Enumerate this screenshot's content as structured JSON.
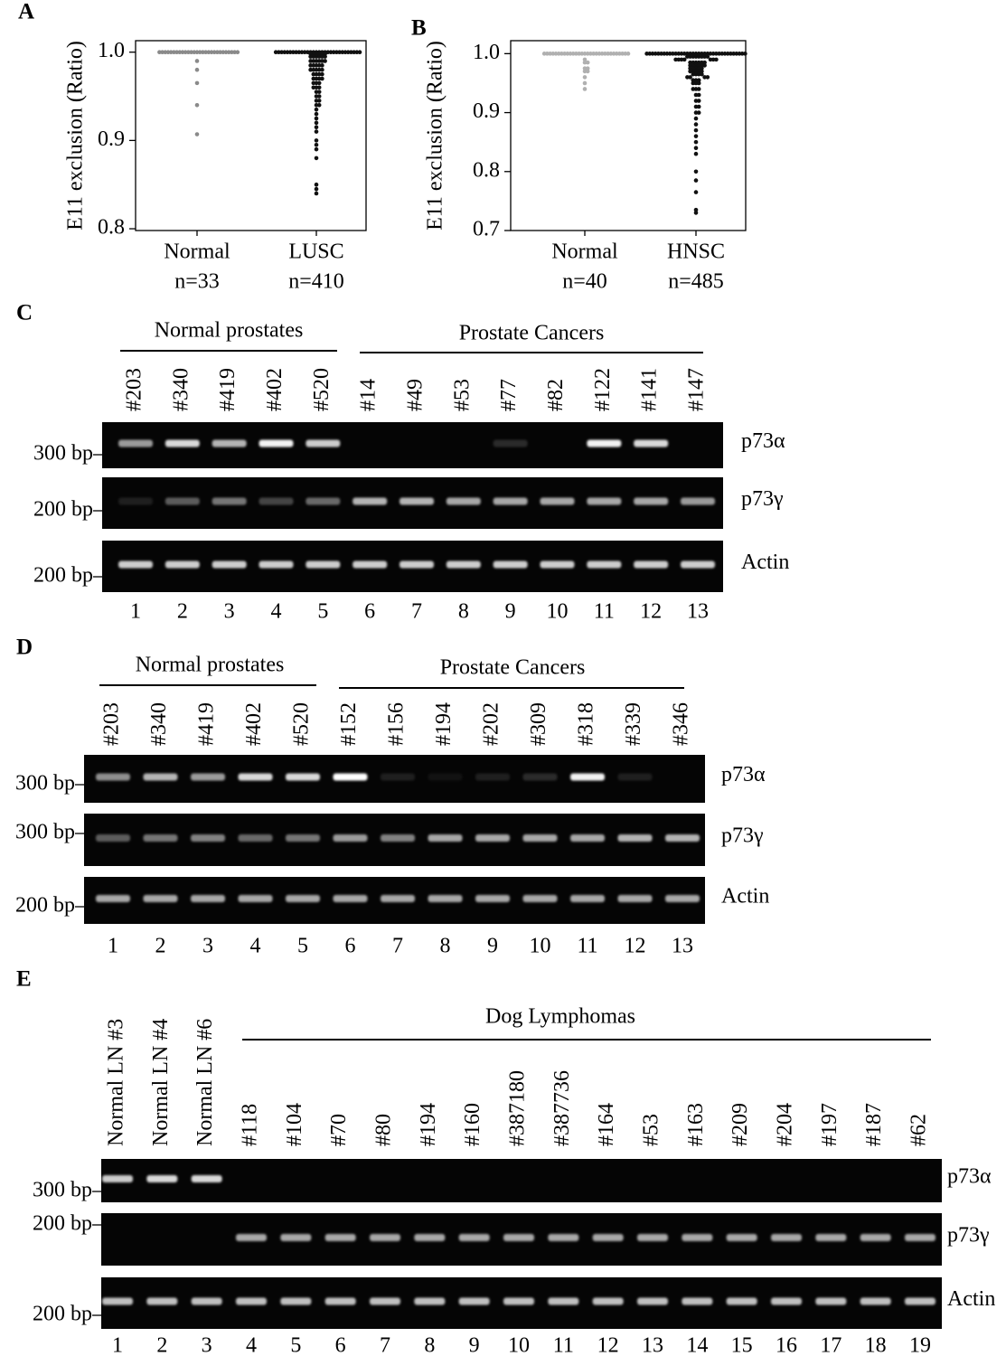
{
  "chart_data": [
    {
      "type": "strip",
      "panel": "A",
      "ylabel": "E11 exclusion (Ratio)",
      "ylim": [
        0.798,
        1.013
      ],
      "yticks": [
        0.8,
        0.9,
        {
          "value": 1,
          "label": "1.0"
        }
      ],
      "series": [
        {
          "name": "Normal",
          "n_label": "n=33",
          "color": "#8a8a8a",
          "values": [
            1,
            1,
            1,
            1,
            1,
            1,
            1,
            1,
            1,
            1,
            1,
            1,
            1,
            1,
            1,
            1,
            1,
            1,
            1,
            1,
            1,
            1,
            1,
            1,
            1,
            1,
            1,
            1,
            0.99,
            0.98,
            0.965,
            0.94,
            0.907
          ]
        },
        {
          "name": "LUSC",
          "n_label": "n=410",
          "color": "#111111",
          "values": [
            1,
            1,
            1,
            1,
            1,
            1,
            1,
            1,
            1,
            1,
            1,
            1,
            1,
            1,
            1,
            1,
            1,
            1,
            1,
            1,
            1,
            1,
            1,
            1,
            1,
            1,
            1,
            1,
            1,
            1,
            0.998,
            0.998,
            0.998,
            0.998,
            0.998,
            0.998,
            0.995,
            0.995,
            0.995,
            0.995,
            0.995,
            0.995,
            0.99,
            0.99,
            0.99,
            0.99,
            0.99,
            0.99,
            0.985,
            0.985,
            0.985,
            0.985,
            0.985,
            0.98,
            0.98,
            0.98,
            0.98,
            0.98,
            0.975,
            0.975,
            0.975,
            0.975,
            0.97,
            0.97,
            0.97,
            0.97,
            0.965,
            0.965,
            0.965,
            0.96,
            0.96,
            0.96,
            0.955,
            0.955,
            0.95,
            0.95,
            0.945,
            0.945,
            0.94,
            0.94,
            0.935,
            0.93,
            0.925,
            0.92,
            0.915,
            0.91,
            0.9,
            0.895,
            0.89,
            0.88,
            0.85,
            0.845,
            0.84
          ]
        }
      ]
    },
    {
      "type": "strip",
      "panel": "B",
      "ylabel": "E11 exclusion (Ratio)",
      "ylim": [
        0.7,
        1.022
      ],
      "yticks": [
        0.7,
        0.8,
        0.9,
        {
          "value": 1,
          "label": "1.0"
        }
      ],
      "series": [
        {
          "name": "Normal",
          "n_label": "n=40",
          "color": "#b0b0b0",
          "values": [
            1,
            1,
            1,
            1,
            1,
            1,
            1,
            1,
            1,
            1,
            1,
            1,
            1,
            1,
            1,
            1,
            1,
            1,
            1,
            1,
            1,
            1,
            1,
            1,
            1,
            1,
            1,
            1,
            1,
            1,
            0.99,
            0.985,
            0.985,
            0.975,
            0.975,
            0.97,
            0.97,
            0.96,
            0.95,
            0.94
          ]
        },
        {
          "name": "HNSC",
          "n_label": "n=485",
          "color": "#111111",
          "values": [
            1,
            1,
            1,
            1,
            1,
            1,
            1,
            1,
            1,
            1,
            1,
            1,
            1,
            1,
            1,
            1,
            1,
            1,
            1,
            1,
            1,
            1,
            1,
            1,
            1,
            1,
            1,
            1,
            1,
            1,
            1,
            1,
            1,
            1,
            1,
            0.995,
            0.995,
            0.995,
            0.995,
            0.995,
            0.995,
            0.995,
            0.995,
            0.99,
            0.99,
            0.99,
            0.99,
            0.99,
            0.99,
            0.99,
            0.985,
            0.985,
            0.985,
            0.985,
            0.985,
            0.985,
            0.98,
            0.98,
            0.98,
            0.98,
            0.98,
            0.98,
            0.975,
            0.975,
            0.975,
            0.975,
            0.975,
            0.97,
            0.97,
            0.97,
            0.97,
            0.97,
            0.965,
            0.965,
            0.965,
            0.965,
            0.96,
            0.96,
            0.96,
            0.96,
            0.955,
            0.955,
            0.955,
            0.95,
            0.95,
            0.95,
            0.94,
            0.94,
            0.94,
            0.93,
            0.93,
            0.92,
            0.92,
            0.91,
            0.91,
            0.9,
            0.9,
            0.89,
            0.88,
            0.87,
            0.86,
            0.85,
            0.84,
            0.83,
            0.8,
            0.785,
            0.765,
            0.735,
            0.73
          ]
        }
      ]
    }
  ],
  "gels": [
    {
      "panel": "C",
      "groups": [
        "Normal prostates",
        "Prostate Cancers"
      ],
      "lanes": [
        "#203",
        "#340",
        "#419",
        "#402",
        "#520",
        "#14",
        "#49",
        "#53",
        "#77",
        "#82",
        "#122",
        "#141",
        "#147"
      ],
      "rows": [
        {
          "marker": "300 bp",
          "label": "p73α"
        },
        {
          "marker": "200 bp",
          "label": "p73γ"
        },
        {
          "marker": "200 bp",
          "label": "Actin"
        }
      ],
      "lane_numbers": [
        1,
        2,
        3,
        4,
        5,
        6,
        7,
        8,
        9,
        10,
        11,
        12,
        13
      ]
    },
    {
      "panel": "D",
      "groups": [
        "Normal prostates",
        "Prostate Cancers"
      ],
      "lanes": [
        "#203",
        "#340",
        "#419",
        "#402",
        "#520",
        "#152",
        "#156",
        "#194",
        "#202",
        "#309",
        "#318",
        "#339",
        "#346"
      ],
      "rows": [
        {
          "marker": "300 bp",
          "label": "p73α"
        },
        {
          "marker": "300 bp",
          "label": "p73γ"
        },
        {
          "marker": "200 bp",
          "label": "Actin"
        }
      ],
      "lane_numbers": [
        1,
        2,
        3,
        4,
        5,
        6,
        7,
        8,
        9,
        10,
        11,
        12,
        13
      ]
    },
    {
      "panel": "E",
      "groups": [
        "Dog Lymphomas"
      ],
      "lanes": [
        "Normal LN #3",
        "Normal LN #4",
        "Normal LN #6",
        "#118",
        "#104",
        "#70",
        "#80",
        "#194",
        "#160",
        "#387180",
        "#387736",
        "#164",
        "#53",
        "#163",
        "#209",
        "#204",
        "#197",
        "#187",
        "#62"
      ],
      "rows": [
        {
          "marker": "300 bp",
          "label": "p73α"
        },
        {
          "marker": "200 bp",
          "label": "p73γ"
        },
        {
          "marker": "200 bp",
          "label": "Actin"
        }
      ],
      "lane_numbers": [
        1,
        2,
        3,
        4,
        5,
        6,
        7,
        8,
        9,
        10,
        11,
        12,
        13,
        14,
        15,
        16,
        17,
        18,
        19
      ]
    }
  ]
}
